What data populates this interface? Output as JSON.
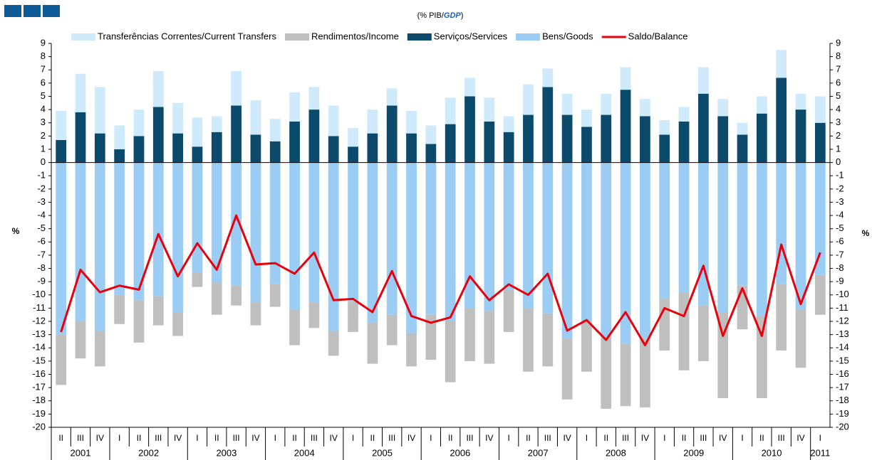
{
  "chart_data": {
    "type": "stacked-bar-line",
    "subtitle_parts": [
      "(% PIB/",
      "GDP",
      ")"
    ],
    "y_label": "%",
    "categories": [
      "II",
      "III",
      "IV",
      "I",
      "II",
      "III",
      "IV",
      "I",
      "II",
      "III",
      "IV",
      "I",
      "II",
      "III",
      "IV",
      "I",
      "II",
      "III",
      "IV",
      "I",
      "II",
      "III",
      "IV",
      "I",
      "II",
      "III",
      "IV",
      "I",
      "II",
      "III",
      "IV",
      "I",
      "II",
      "III",
      "IV",
      "I",
      "II",
      "III",
      "IV",
      "I"
    ],
    "years": [
      "2001",
      "2002",
      "2003",
      "2004",
      "2005",
      "2006",
      "2007",
      "2008",
      "2009",
      "2010",
      "2011"
    ],
    "ylim": [
      -20,
      9
    ],
    "yticks": [
      -20,
      -19,
      -18,
      -17,
      -16,
      -15,
      -14,
      -13,
      -12,
      -11,
      -10,
      -9,
      -8,
      -7,
      -6,
      -5,
      -4,
      -3,
      -2,
      -1,
      0,
      1,
      2,
      3,
      4,
      5,
      6,
      7,
      8,
      9
    ],
    "series": [
      {
        "name": "Transferências Correntes/Current Transfers",
        "color": "#cfeafb",
        "kind": "bar",
        "values": [
          2.2,
          2.9,
          3.5,
          1.8,
          2.0,
          2.7,
          2.3,
          2.2,
          1.2,
          2.6,
          2.6,
          1.7,
          2.2,
          1.7,
          2.3,
          1.4,
          1.8,
          1.3,
          1.7,
          1.4,
          2.0,
          1.4,
          1.8,
          1.2,
          2.3,
          1.4,
          1.6,
          1.3,
          1.6,
          1.7,
          1.3,
          1.1,
          1.1,
          2.0,
          1.3,
          0.9,
          1.3,
          2.1,
          1.2,
          2.0
        ]
      },
      {
        "name": "Rendimentos/Income",
        "color": "#bfbfbf",
        "kind": "bar",
        "values": [
          -3.8,
          -2.8,
          -2.7,
          -2.2,
          -3.2,
          -2.2,
          -1.8,
          -1.1,
          -2.4,
          -1.5,
          -1.7,
          -1.7,
          -2.7,
          -1.9,
          -1.9,
          -2.3,
          -3.1,
          -2.3,
          -2.5,
          -3.4,
          -4.6,
          -4.0,
          -4.0,
          -3.2,
          -4.8,
          -4.0,
          -4.6,
          -3.8,
          -5.4,
          -4.7,
          -5.2,
          -3.9,
          -5.9,
          -4.2,
          -6.5,
          -3.3,
          -6.2,
          -5.0,
          -4.4,
          -3.0
        ]
      },
      {
        "name": "Serviços/Services",
        "color": "#0c4a6c",
        "kind": "bar",
        "values": [
          1.7,
          3.8,
          2.2,
          1.0,
          2.0,
          4.2,
          2.2,
          1.2,
          2.3,
          4.3,
          2.1,
          1.6,
          3.1,
          4.0,
          2.0,
          1.2,
          2.2,
          4.3,
          2.2,
          1.4,
          2.9,
          5.0,
          3.1,
          2.3,
          3.6,
          5.7,
          3.6,
          2.7,
          3.6,
          5.5,
          3.5,
          2.1,
          3.1,
          5.2,
          3.5,
          2.1,
          3.7,
          6.4,
          4.0,
          3.0
        ]
      },
      {
        "name": "Bens/Goods",
        "color": "#9bcdf4",
        "kind": "bar",
        "values": [
          -13.0,
          -12.0,
          -12.7,
          -10.0,
          -10.4,
          -10.1,
          -11.3,
          -8.3,
          -9.1,
          -9.3,
          -10.6,
          -9.2,
          -11.1,
          -10.6,
          -12.7,
          -10.5,
          -12.1,
          -11.5,
          -12.9,
          -11.5,
          -12.0,
          -11.0,
          -11.2,
          -9.6,
          -11.0,
          -11.4,
          -13.3,
          -12.0,
          -13.2,
          -13.7,
          -13.3,
          -10.3,
          -9.8,
          -10.8,
          -11.3,
          -9.3,
          -11.6,
          -9.2,
          -11.1,
          -8.5
        ]
      },
      {
        "name": "Saldo/Balance",
        "color": "#e8000b",
        "kind": "line",
        "values": [
          -12.8,
          -8.1,
          -9.8,
          -9.3,
          -9.6,
          -5.4,
          -8.6,
          -6.1,
          -8.1,
          -4.0,
          -7.7,
          -7.6,
          -8.4,
          -6.8,
          -10.4,
          -10.3,
          -11.3,
          -8.2,
          -11.6,
          -12.1,
          -11.7,
          -8.6,
          -10.4,
          -9.2,
          -10.0,
          -8.4,
          -12.7,
          -11.9,
          -13.4,
          -11.3,
          -13.8,
          -11.0,
          -11.6,
          -7.8,
          -13.1,
          -9.5,
          -13.1,
          -6.2,
          -10.7,
          -6.8
        ]
      }
    ]
  }
}
